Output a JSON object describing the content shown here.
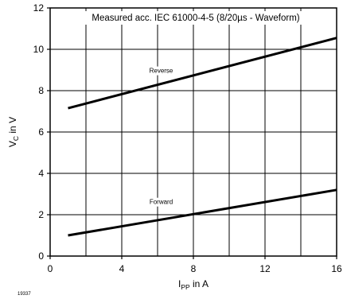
{
  "chart_data": {
    "type": "line",
    "title": "Measured acc. IEC 61000-4-5 (8/20µs - Waveform)",
    "xlabel": {
      "main": "I",
      "sub": "PP",
      "rest": " in A"
    },
    "ylabel": {
      "main": "V",
      "sub": "C",
      "rest": " in V"
    },
    "xlim": [
      0,
      16
    ],
    "ylim": [
      0,
      12
    ],
    "xticks": [
      0,
      4,
      8,
      12,
      16
    ],
    "yticks": [
      0,
      2,
      4,
      6,
      8,
      10,
      12
    ],
    "xgrid": [
      0,
      2,
      4,
      6,
      8,
      10,
      12,
      14,
      16
    ],
    "ygrid": [
      0,
      2,
      4,
      6,
      8,
      10,
      12
    ],
    "grid": true,
    "series": [
      {
        "name": "Reverse",
        "x": [
          1,
          16
        ],
        "y": [
          7.15,
          10.55
        ],
        "label_at": [
          6.2,
          8.9
        ]
      },
      {
        "name": "Forward",
        "x": [
          1,
          16
        ],
        "y": [
          1.0,
          3.2
        ],
        "label_at": [
          6.2,
          2.55
        ]
      }
    ]
  },
  "figure_id": "19337"
}
